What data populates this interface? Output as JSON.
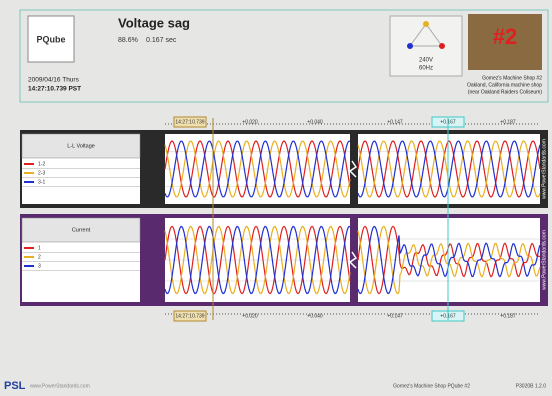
{
  "header": {
    "title": "Voltage sag",
    "magnitude": "88.6%",
    "duration": "0.167 sec",
    "date": "2009/04/16 Thurs",
    "time": "14:27:10.739 PST",
    "voltage": "240V",
    "frequency": "60Hz",
    "badge": "#2",
    "site_name": "Gomez's Machine Shop #2",
    "site_location": "Oakland, California machine shop",
    "site_note": "(near Oakland Raiders Coliseum)",
    "logo": "PQube"
  },
  "time_axis": {
    "ticks": [
      "14:27:10.739",
      "+0.020",
      "+0.040",
      "+0.147",
      "+0.167",
      "+0.187"
    ]
  },
  "panels": [
    {
      "label": "L-L Voltage",
      "legend": [
        "1-2",
        "2-3",
        "3-1"
      ]
    },
    {
      "label": "Current",
      "legend": [
        "1",
        "2",
        "3"
      ]
    }
  ],
  "watermark": "www.PowerStandards.com",
  "footer": {
    "brand": "PSL",
    "url": "www.PowerStandards.com",
    "device": "Gomez's Machine Shop PQube #2",
    "version": "P3020B 1.2.0"
  }
}
